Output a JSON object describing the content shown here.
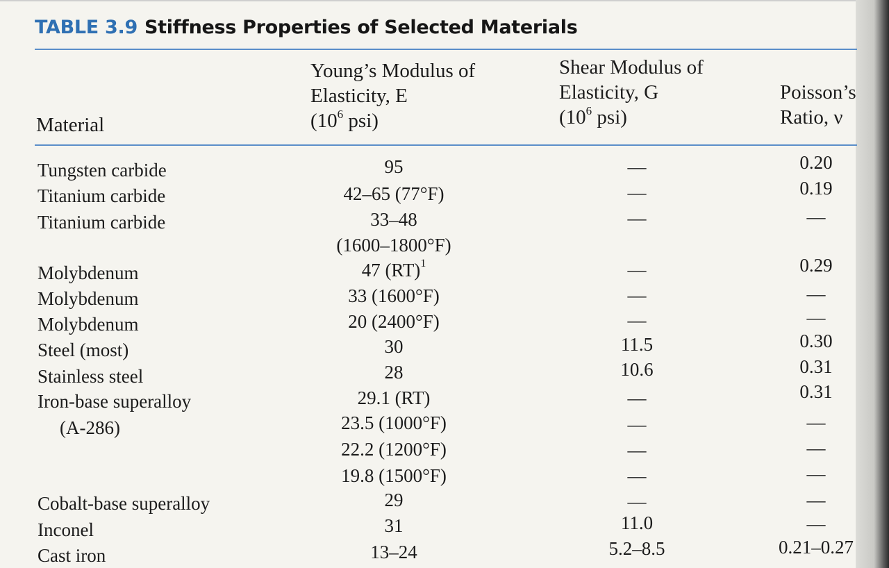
{
  "table": {
    "number": "TABLE 3.9",
    "title": "Stiffness Properties of Selected Materials",
    "headers": {
      "material": "Material",
      "young": [
        "Young’s Modulus of",
        "Elasticity, E",
        "(10",
        "6",
        " psi)"
      ],
      "shear": [
        "Shear Modulus of",
        "Elasticity, G",
        "(10",
        "6",
        " psi)"
      ],
      "poisson": [
        "Poisson’s",
        "Ratio, ν"
      ]
    },
    "materials": [
      "Tungsten carbide",
      "Titanium carbide",
      "Titanium carbide",
      "Molybdenum",
      "Molybdenum",
      "Molybdenum",
      "Steel (most)",
      "Stainless steel",
      "Iron-base superalloy",
      "(A-286)",
      "Cobalt-base superalloy",
      "Inconel",
      "Cast iron"
    ],
    "young_values": [
      "95",
      "42–65 (77°F)",
      "33–48",
      "(1600–1800°F)",
      "47 (RT)",
      "33 (1600°F)",
      "20 (2400°F)",
      "30",
      "28",
      "29.1 (RT)",
      "23.5 (1000°F)",
      "22.2 (1200°F)",
      "19.8 (1500°F)",
      "29",
      "31",
      "13–24"
    ],
    "young_footnote": "1",
    "shear_values": [
      "—",
      "—",
      "—",
      "—",
      "—",
      "—",
      "11.5",
      "10.6",
      "—",
      "—",
      "—",
      "—",
      "—",
      "11.0",
      "5.2–8.5"
    ],
    "poisson_values": [
      "0.20",
      "0.19",
      "—",
      "0.29",
      "—",
      "—",
      "0.30",
      "0.31",
      "0.31",
      "—",
      "—",
      "—",
      "—",
      "—",
      "0.21–0.27"
    ]
  }
}
